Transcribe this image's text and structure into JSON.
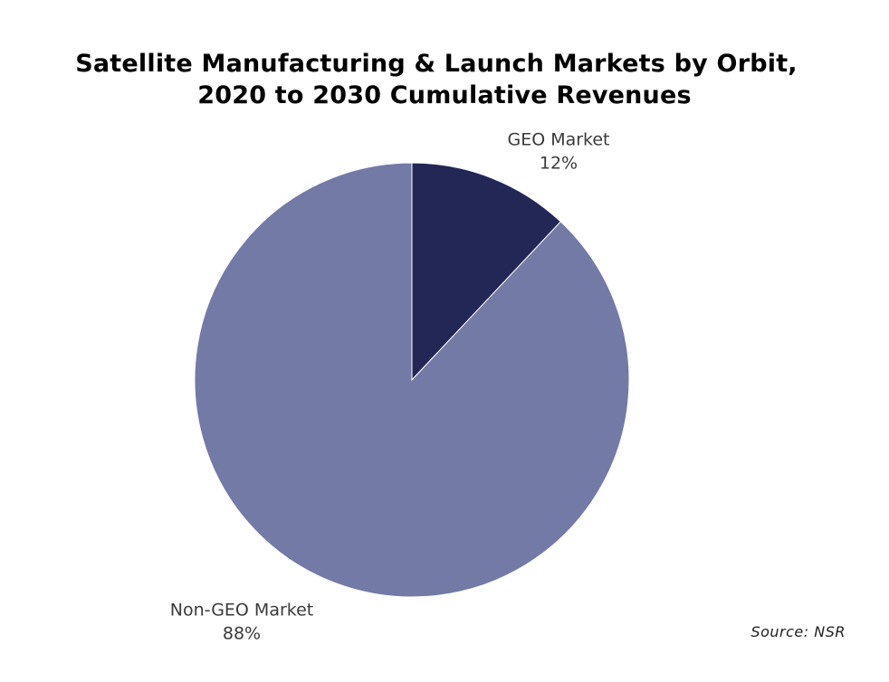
{
  "chart_data": {
    "type": "pie",
    "title_lines": [
      "Satellite Manufacturing & Launch Markets by Orbit,",
      "2020 to 2030 Cumulative Revenues"
    ],
    "slices": [
      {
        "name": "GEO Market",
        "value": 12,
        "label": "12%",
        "color": "#232756"
      },
      {
        "name": "Non-GEO Market",
        "value": 88,
        "label": "88%",
        "color": "#747aa6"
      }
    ],
    "start_angle": "12 o'clock",
    "direction": "clockwise",
    "source": "Source: NSR"
  }
}
